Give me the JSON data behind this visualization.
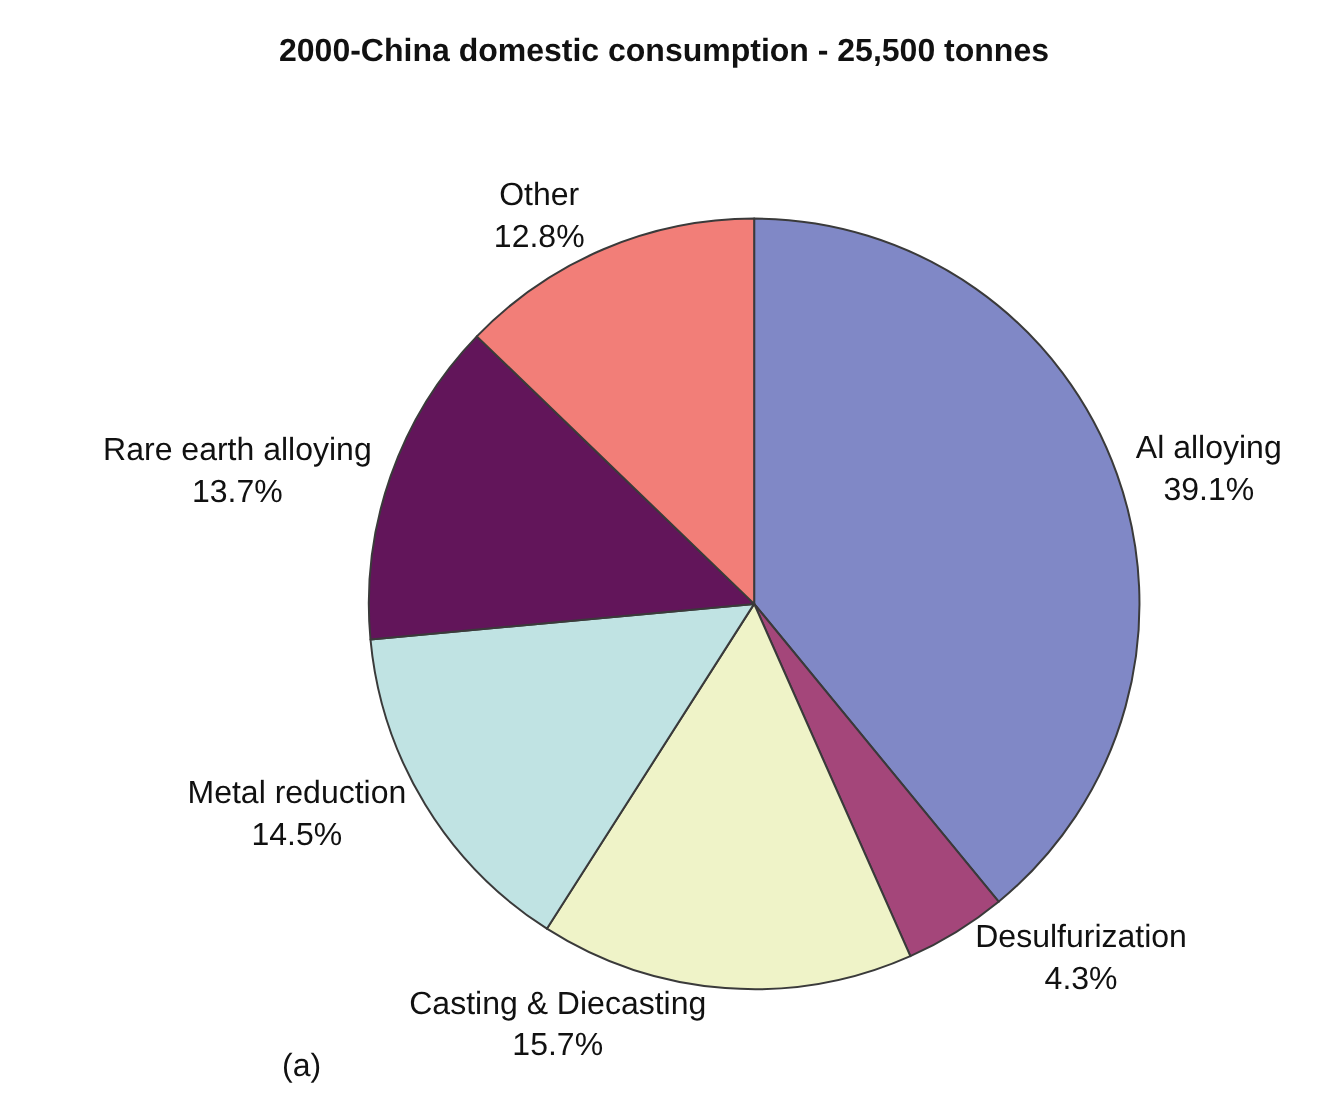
{
  "chart_data": {
    "type": "pie",
    "title": "2000-China domestic consumption - 25,500 tonnes",
    "categories": [
      "Al alloying",
      "Desulfurization",
      "Casting & Diecasting",
      "Metal reduction",
      "Rare earth alloying",
      "Other"
    ],
    "values": [
      39.1,
      4.3,
      15.7,
      14.5,
      13.7,
      12.8
    ],
    "value_labels": [
      "39.1%",
      "4.3%",
      "15.7%",
      "14.5%",
      "13.7%",
      "12.8%"
    ],
    "colors": [
      "#8088c6",
      "#a4467a",
      "#eff3c8",
      "#c0e3e3",
      "#62155a",
      "#f27e78"
    ],
    "annotations": [
      "(a)"
    ],
    "legend": false
  }
}
